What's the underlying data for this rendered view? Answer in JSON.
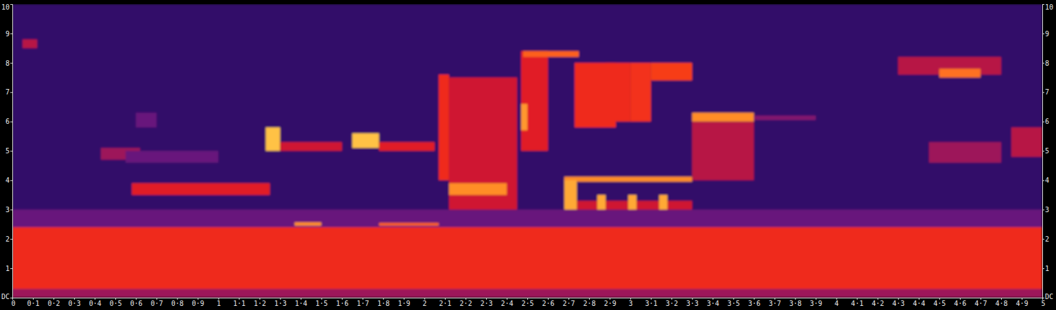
{
  "chart_data": {
    "type": "spectrogram",
    "xlim": [
      0,
      5
    ],
    "ylim": [
      0,
      10
    ],
    "zlim": [
      0,
      1
    ],
    "xticks": [
      0,
      {
        "value": 0.1,
        "label": "0·1"
      },
      {
        "value": 0.2,
        "label": "0·2"
      },
      {
        "value": 0.3,
        "label": "0·3"
      },
      {
        "value": 0.4,
        "label": "0·4"
      },
      {
        "value": 0.5,
        "label": "0·5"
      },
      {
        "value": 0.6,
        "label": "0·6"
      },
      {
        "value": 0.7,
        "label": "0·7"
      },
      {
        "value": 0.8,
        "label": "0·8"
      },
      {
        "value": 0.9,
        "label": "0·9"
      },
      1,
      {
        "value": 1.1,
        "label": "1·1"
      },
      {
        "value": 1.2,
        "label": "1·2"
      },
      {
        "value": 1.3,
        "label": "1·3"
      },
      {
        "value": 1.4,
        "label": "1·4"
      },
      {
        "value": 1.5,
        "label": "1·5"
      },
      {
        "value": 1.6,
        "label": "1·6"
      },
      {
        "value": 1.7,
        "label": "1·7"
      },
      {
        "value": 1.8,
        "label": "1·8"
      },
      {
        "value": 1.9,
        "label": "1·9"
      },
      2,
      {
        "value": 2.1,
        "label": "2·1"
      },
      {
        "value": 2.2,
        "label": "2·2"
      },
      {
        "value": 2.3,
        "label": "2·3"
      },
      {
        "value": 2.4,
        "label": "2·4"
      },
      {
        "value": 2.5,
        "label": "2·5"
      },
      {
        "value": 2.6,
        "label": "2·6"
      },
      {
        "value": 2.7,
        "label": "2·7"
      },
      {
        "value": 2.8,
        "label": "2·8"
      },
      {
        "value": 2.9,
        "label": "2·9"
      },
      3,
      {
        "value": 3.1,
        "label": "3·1"
      },
      {
        "value": 3.2,
        "label": "3·2"
      },
      {
        "value": 3.3,
        "label": "3·3"
      },
      {
        "value": 3.4,
        "label": "3·4"
      },
      {
        "value": 3.5,
        "label": "3·5"
      },
      {
        "value": 3.6,
        "label": "3·6"
      },
      {
        "value": 3.7,
        "label": "3·7"
      },
      {
        "value": 3.8,
        "label": "3·8"
      },
      {
        "value": 3.9,
        "label": "3·9"
      },
      4,
      {
        "value": 4.1,
        "label": "4·1"
      },
      {
        "value": 4.2,
        "label": "4·2"
      },
      {
        "value": 4.3,
        "label": "4·3"
      },
      {
        "value": 4.4,
        "label": "4·4"
      },
      {
        "value": 4.5,
        "label": "4·5"
      },
      {
        "value": 4.6,
        "label": "4·6"
      },
      {
        "value": 4.7,
        "label": "4·7"
      },
      {
        "value": 4.8,
        "label": "4·8"
      },
      {
        "value": 4.9,
        "label": "4·9"
      },
      5
    ],
    "yticks": [
      {
        "value": 0,
        "label": "DC"
      },
      1,
      2,
      3,
      4,
      5,
      6,
      7,
      8,
      9,
      10
    ],
    "segments": [
      {
        "x": [
          0,
          5
        ],
        "y": [
          0,
          10
        ],
        "level": 0.15
      },
      {
        "x": [
          0,
          5
        ],
        "y": [
          2.4,
          3.0
        ],
        "level": 0.3
      },
      {
        "x": [
          0,
          5
        ],
        "y": [
          0,
          2.4
        ],
        "level": 0.6
      },
      {
        "x": [
          0,
          5
        ],
        "y": [
          0,
          0.3
        ],
        "level": 0.4
      },
      {
        "x": [
          0.05,
          0.12
        ],
        "y": [
          8.5,
          8.8
        ],
        "level": 0.45
      },
      {
        "x": [
          0.43,
          0.62
        ],
        "y": [
          4.7,
          5.1
        ],
        "level": 0.4
      },
      {
        "x": [
          0.55,
          1.0
        ],
        "y": [
          4.6,
          5.0
        ],
        "level": 0.3
      },
      {
        "x": [
          0.6,
          0.7
        ],
        "y": [
          5.8,
          6.3
        ],
        "level": 0.3
      },
      {
        "x": [
          0.58,
          1.25
        ],
        "y": [
          3.5,
          3.9
        ],
        "level": 0.55
      },
      {
        "x": [
          1.23,
          1.3
        ],
        "y": [
          5.0,
          5.8
        ],
        "level": 0.9
      },
      {
        "x": [
          1.3,
          1.6
        ],
        "y": [
          5.0,
          5.3
        ],
        "level": 0.5
      },
      {
        "x": [
          1.37,
          1.5
        ],
        "y": [
          2.45,
          2.57
        ],
        "level": 0.8
      },
      {
        "x": [
          1.65,
          1.78
        ],
        "y": [
          5.1,
          5.6
        ],
        "level": 0.9
      },
      {
        "x": [
          1.78,
          2.05
        ],
        "y": [
          5.0,
          5.3
        ],
        "level": 0.55
      },
      {
        "x": [
          1.78,
          2.07
        ],
        "y": [
          2.45,
          2.55
        ],
        "level": 0.72
      },
      {
        "x": [
          2.07,
          2.12
        ],
        "y": [
          4.0,
          7.6
        ],
        "level": 0.6
      },
      {
        "x": [
          2.12,
          2.45
        ],
        "y": [
          3.0,
          7.5
        ],
        "level": 0.5
      },
      {
        "x": [
          2.12,
          2.4
        ],
        "y": [
          3.5,
          3.9
        ],
        "level": 0.8
      },
      {
        "x": [
          2.47,
          2.6
        ],
        "y": [
          5.0,
          8.4
        ],
        "level": 0.55
      },
      {
        "x": [
          2.48,
          2.75
        ],
        "y": [
          8.2,
          8.4
        ],
        "level": 0.72
      },
      {
        "x": [
          2.47,
          2.5
        ],
        "y": [
          5.7,
          6.6
        ],
        "level": 0.82
      },
      {
        "x": [
          2.73,
          2.93
        ],
        "y": [
          5.8,
          8.0
        ],
        "level": 0.6
      },
      {
        "x": [
          2.88,
          3.0
        ],
        "y": [
          6.0,
          8.0
        ],
        "level": 0.6
      },
      {
        "x": [
          3.0,
          3.1
        ],
        "y": [
          6.0,
          8.0
        ],
        "level": 0.62
      },
      {
        "x": [
          3.1,
          3.3
        ],
        "y": [
          7.4,
          8.0
        ],
        "level": 0.65
      },
      {
        "x": [
          2.68,
          3.3
        ],
        "y": [
          3.95,
          4.12
        ],
        "level": 0.8
      },
      {
        "x": [
          2.74,
          3.3
        ],
        "y": [
          3.0,
          3.3
        ],
        "level": 0.5
      },
      {
        "x": [
          2.68,
          2.74
        ],
        "y": [
          3.0,
          4.0
        ],
        "level": 0.85
      },
      {
        "x": [
          2.84,
          2.88
        ],
        "y": [
          3.0,
          3.5
        ],
        "level": 0.85
      },
      {
        "x": [
          2.99,
          3.03
        ],
        "y": [
          3.0,
          3.5
        ],
        "level": 0.85
      },
      {
        "x": [
          3.14,
          3.18
        ],
        "y": [
          3.0,
          3.5
        ],
        "level": 0.85
      },
      {
        "x": [
          3.3,
          3.6
        ],
        "y": [
          4.0,
          6.0
        ],
        "level": 0.45
      },
      {
        "x": [
          3.3,
          3.6
        ],
        "y": [
          6.0,
          6.3
        ],
        "level": 0.8
      },
      {
        "x": [
          3.6,
          3.9
        ],
        "y": [
          6.05,
          6.2
        ],
        "level": 0.35
      },
      {
        "x": [
          4.3,
          4.8
        ],
        "y": [
          7.6,
          8.2
        ],
        "level": 0.45
      },
      {
        "x": [
          4.5,
          4.7
        ],
        "y": [
          7.5,
          7.8
        ],
        "level": 0.75
      },
      {
        "x": [
          4.45,
          4.8
        ],
        "y": [
          4.6,
          5.3
        ],
        "level": 0.4
      },
      {
        "x": [
          4.85,
          5.0
        ],
        "y": [
          4.8,
          5.8
        ],
        "level": 0.45
      }
    ]
  }
}
